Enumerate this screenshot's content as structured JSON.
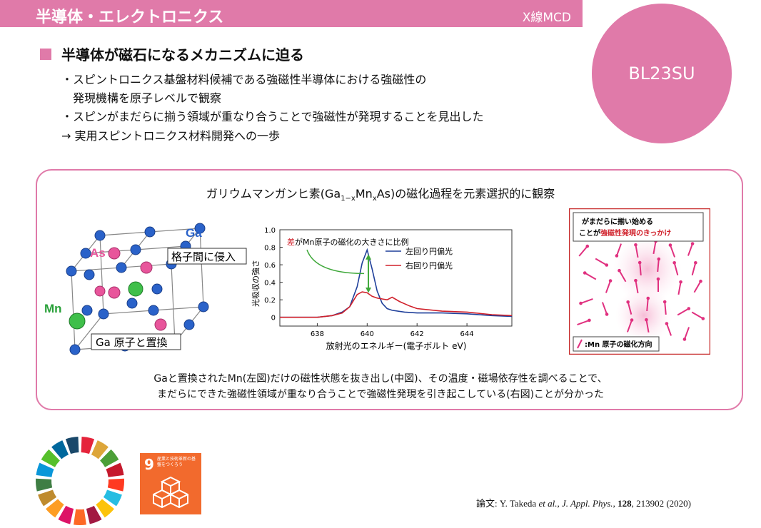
{
  "header": {
    "title": "半導体・エレクトロニクス",
    "tag": "X線MCD"
  },
  "beamline": "BL23SU",
  "section": {
    "heading": "半導体が磁石になるメカニズムに迫る",
    "points": [
      "・スピントロニクス基盤材料候補である強磁性半導体における強磁性の",
      "　発現機構を原子レベルで観察",
      "・スピンがまだらに揃う領域が重なり合うことで強磁性が発現することを見出した",
      "→ 実用スピントロニクス材料開発への一歩"
    ]
  },
  "panel": {
    "title_pre": "ガリウムマンガンヒ素(Ga",
    "title_sub1": "1−x",
    "title_mid": "Mn",
    "title_sub2": "x",
    "title_post": "As)の磁化過程を元素選択的に観察",
    "crystal": {
      "ga": "Ga",
      "as": "As",
      "mn": "Mn",
      "interstitial": "格子間に侵入",
      "substitution": "Ga 原子と置換"
    },
    "right": {
      "callout_line1": "がまだらに揃い始める",
      "callout_line2_pre": "ことが",
      "callout_line2_red": "強磁性発現のきっかけ",
      "legend": ":Mn 原子の磁化方向"
    },
    "caption_line1": "Gaと置換されたMn(左図)だけの磁性状態を抜き出し(中図)、その温度・磁場依存性を調べることで、",
    "caption_line2": "まだらにできた強磁性領域が重なり合うことで強磁性発現を引き起こしている(右図)ことが分かった"
  },
  "sdg": {
    "number": "9",
    "text": "産業と技術革新の基盤をつくろう"
  },
  "reference": {
    "prefix": "論文: ",
    "authors": "Y. Takeda ",
    "etal": "et al.",
    "journal": ", J. Appl. Phys.",
    ", ": ", ",
    "volume": "128",
    "rest": ", 213902 (2020)"
  },
  "chart_data": {
    "type": "line",
    "xlabel": "放射光のエネルギー(電子ボルト eV)",
    "ylabel": "光吸収の強さ",
    "xlim": [
      636.5,
      645.8
    ],
    "ylim": [
      -0.1,
      1.0
    ],
    "xticks": [
      638,
      640,
      642,
      644
    ],
    "yticks": [
      0,
      0.2,
      0.4,
      0.6,
      0.8,
      1.0
    ],
    "ytick_labels": [
      "0",
      "0.2",
      "0.4",
      "0.6",
      "0.8",
      "1.0"
    ],
    "annotation_red": "差",
    "annotation_rest": "がMn原子の磁化の大きさに比例",
    "series": [
      {
        "name": "左回り円偏光",
        "color": "#1f3f9a",
        "x": [
          636.5,
          638,
          638.6,
          639.0,
          639.3,
          639.6,
          639.8,
          640.0,
          640.2,
          640.4,
          640.6,
          640.8,
          641.0,
          641.5,
          642,
          643,
          644,
          645,
          645.8
        ],
        "y": [
          0.0,
          0.0,
          0.02,
          0.06,
          0.12,
          0.35,
          0.62,
          0.77,
          0.55,
          0.3,
          0.16,
          0.1,
          0.08,
          0.06,
          0.05,
          0.05,
          0.04,
          0.02,
          0.01
        ]
      },
      {
        "name": "右回り円偏光",
        "color": "#d0202a",
        "x": [
          636.5,
          638,
          638.6,
          639.0,
          639.3,
          639.6,
          639.8,
          640.0,
          640.2,
          640.4,
          640.6,
          640.8,
          641.0,
          641.3,
          641.7,
          642,
          643,
          644,
          645,
          645.8
        ],
        "y": [
          0.0,
          0.0,
          0.02,
          0.05,
          0.12,
          0.26,
          0.29,
          0.28,
          0.24,
          0.22,
          0.21,
          0.2,
          0.23,
          0.18,
          0.13,
          0.1,
          0.07,
          0.06,
          0.03,
          0.02
        ]
      }
    ]
  }
}
